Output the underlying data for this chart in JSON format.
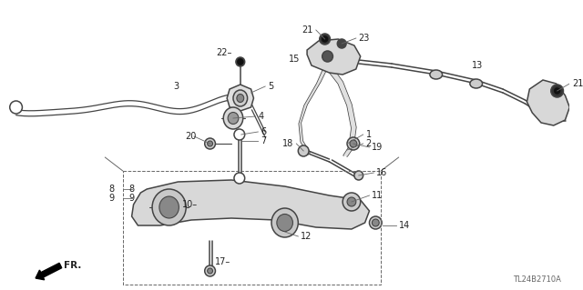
{
  "background_color": "#ffffff",
  "figure_width": 6.4,
  "figure_height": 3.19,
  "diagram_code": "TL24B2710A",
  "line_color": "#444444",
  "label_color": "#222222",
  "label_fontsize": 7.0
}
